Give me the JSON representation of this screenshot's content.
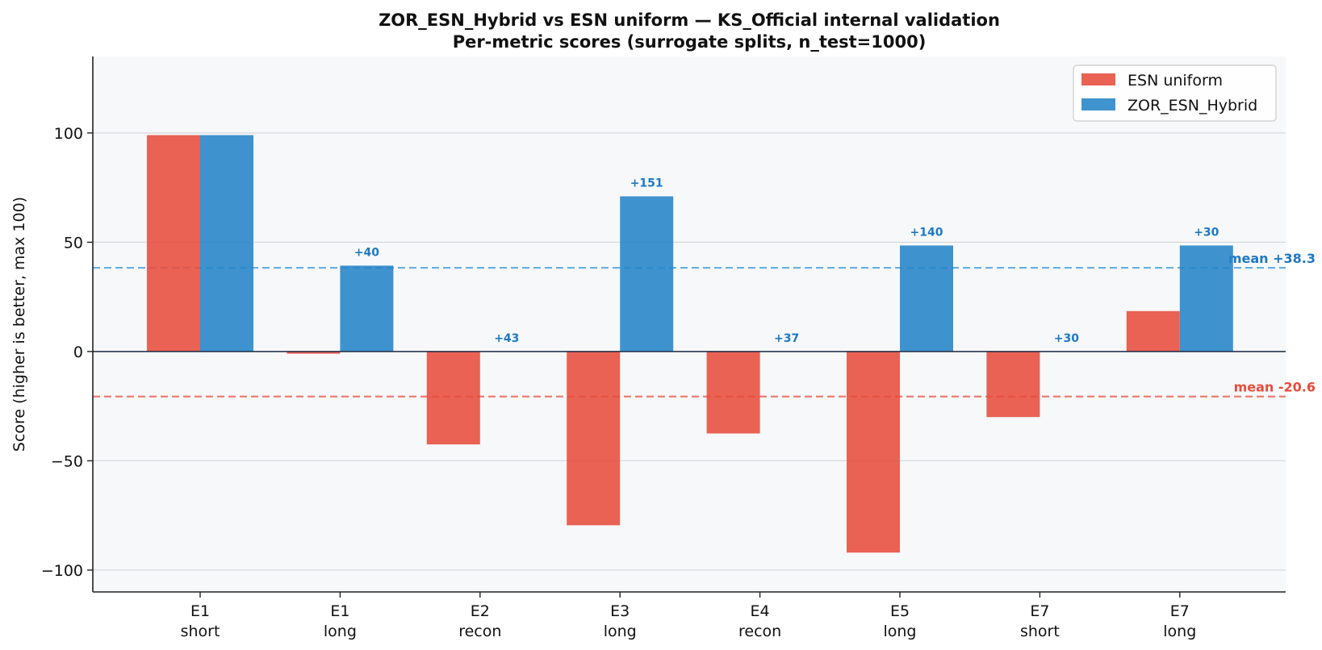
{
  "chart_data": {
    "type": "bar",
    "title": "ZOR_ESN_Hybrid vs ESN uniform — KS_Official internal validation",
    "subtitle": "Per-metric scores (surrogate splits, n_test=1000)",
    "xlabel": "",
    "ylabel": "Score (higher is better, max 100)",
    "ylim": [
      -110,
      135
    ],
    "yticks": [
      -100,
      -50,
      0,
      50,
      100
    ],
    "ytick_labels": [
      "−100",
      "−50",
      "0",
      "50",
      "100"
    ],
    "grid": "horizontal",
    "legend_position": "top-right",
    "categories": [
      {
        "line1": "E1",
        "line2": "short"
      },
      {
        "line1": "E1",
        "line2": "long"
      },
      {
        "line1": "E2",
        "line2": "recon"
      },
      {
        "line1": "E3",
        "line2": "long"
      },
      {
        "line1": "E4",
        "line2": "recon"
      },
      {
        "line1": "E5",
        "line2": "long"
      },
      {
        "line1": "E7",
        "line2": "short"
      },
      {
        "line1": "E7",
        "line2": "long"
      }
    ],
    "series": [
      {
        "name": "ESN uniform",
        "color": "#e74c3c",
        "values": [
          99,
          -1,
          -42.5,
          -79.5,
          -37.5,
          -92,
          -30,
          18.5
        ]
      },
      {
        "name": "ZOR_ESN_Hybrid",
        "color": "#2484c8",
        "values": [
          99,
          39.3,
          0,
          71,
          0,
          48.5,
          0,
          48.5
        ]
      }
    ],
    "delta_labels": [
      "",
      "+40",
      "+43",
      "+151",
      "+37",
      "+140",
      "+30",
      "+30"
    ],
    "mean_lines": [
      {
        "label": "mean +38.3",
        "value": 38.3,
        "color": "#3498db",
        "text_color": "#1f78c1"
      },
      {
        "label": "mean -20.6",
        "value": -20.6,
        "color": "#e74c3c",
        "text_color": "#e74c3c"
      }
    ],
    "plot_background": "#f7f8fa"
  }
}
